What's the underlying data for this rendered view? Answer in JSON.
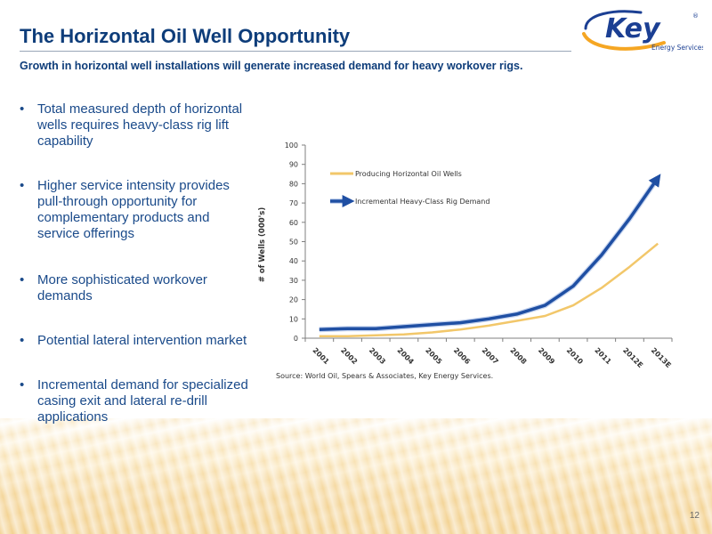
{
  "slide": {
    "title": "The Horizontal Oil Well Opportunity",
    "subtitle": "Growth in horizontal well installations will generate increased demand for heavy workover rigs.",
    "page_number": "12"
  },
  "logo": {
    "brand": "Key",
    "tagline": "Energy Services",
    "mark": "®",
    "icon": "key-swoosh-logo",
    "colors": {
      "blue": "#1b3f93",
      "orange": "#f5a623"
    }
  },
  "bullets": [
    {
      "bullet": "•",
      "text": "Total measured depth of horizontal wells requires heavy-class rig lift capability"
    },
    {
      "bullet": "•",
      "text": "Higher service intensity provides pull-through opportunity for complementary products and service offerings"
    },
    {
      "bullet": "•",
      "text": "More sophisticated workover demands"
    },
    {
      "bullet": "•",
      "text": "Potential lateral intervention market"
    },
    {
      "bullet": "•",
      "text": "Incremental demand for specialized casing exit and lateral re-drill applications"
    }
  ],
  "chart_data": {
    "type": "line",
    "title": "",
    "xlabel": "",
    "ylabel": "# of Wells (000's)",
    "ylim": [
      0,
      100
    ],
    "yticks": [
      0,
      10,
      20,
      30,
      40,
      50,
      60,
      70,
      80,
      90,
      100
    ],
    "categories": [
      "2001",
      "2002",
      "2003",
      "2004",
      "2005",
      "2006",
      "2007",
      "2008",
      "2009",
      "2010",
      "2011",
      "2012E",
      "2013E"
    ],
    "series": [
      {
        "name": "Producing Horizontal Oil Wells",
        "color": "#f2c76a",
        "values": [
          1,
          1,
          1.5,
          2,
          3,
          4.5,
          6.5,
          9,
          11.5,
          17,
          26,
          37,
          49
        ]
      },
      {
        "name": "Incremental Heavy-Class Rig Demand",
        "color": "#1f4fa3",
        "values": [
          4.5,
          5,
          5,
          6,
          7,
          8,
          10,
          12.5,
          17,
          27,
          43,
          62,
          83
        ]
      }
    ],
    "legend_position": "top-left",
    "grid": false,
    "source": "Source: World Oil, Spears & Associates, Key Energy Services."
  }
}
